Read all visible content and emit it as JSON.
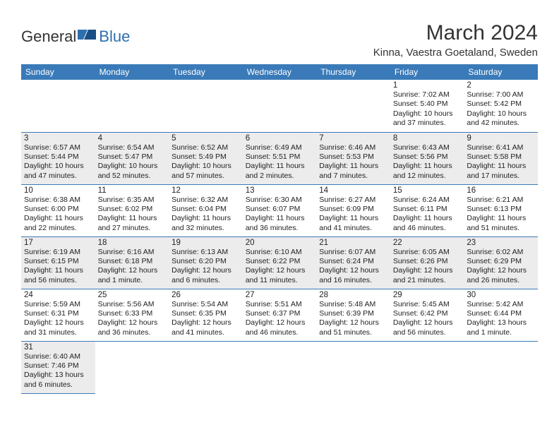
{
  "logo": {
    "text1": "General",
    "text2": "Blue",
    "accent": "#2f6fae"
  },
  "title": "March 2024",
  "location": "Kinna, Vaestra Goetaland, Sweden",
  "colors": {
    "header_bg": "#3a7ab8",
    "header_fg": "#ffffff",
    "row_alt_bg": "#ececec",
    "border": "#3a7ab8",
    "page_bg": "#ffffff",
    "text": "#222222"
  },
  "daynames": [
    "Sunday",
    "Monday",
    "Tuesday",
    "Wednesday",
    "Thursday",
    "Friday",
    "Saturday"
  ],
  "weeks": [
    [
      null,
      null,
      null,
      null,
      null,
      {
        "n": "1",
        "sr": "7:02 AM",
        "ss": "5:40 PM",
        "dl": "10 hours and 37 minutes."
      },
      {
        "n": "2",
        "sr": "7:00 AM",
        "ss": "5:42 PM",
        "dl": "10 hours and 42 minutes."
      }
    ],
    [
      {
        "n": "3",
        "sr": "6:57 AM",
        "ss": "5:44 PM",
        "dl": "10 hours and 47 minutes."
      },
      {
        "n": "4",
        "sr": "6:54 AM",
        "ss": "5:47 PM",
        "dl": "10 hours and 52 minutes."
      },
      {
        "n": "5",
        "sr": "6:52 AM",
        "ss": "5:49 PM",
        "dl": "10 hours and 57 minutes."
      },
      {
        "n": "6",
        "sr": "6:49 AM",
        "ss": "5:51 PM",
        "dl": "11 hours and 2 minutes."
      },
      {
        "n": "7",
        "sr": "6:46 AM",
        "ss": "5:53 PM",
        "dl": "11 hours and 7 minutes."
      },
      {
        "n": "8",
        "sr": "6:43 AM",
        "ss": "5:56 PM",
        "dl": "11 hours and 12 minutes."
      },
      {
        "n": "9",
        "sr": "6:41 AM",
        "ss": "5:58 PM",
        "dl": "11 hours and 17 minutes."
      }
    ],
    [
      {
        "n": "10",
        "sr": "6:38 AM",
        "ss": "6:00 PM",
        "dl": "11 hours and 22 minutes."
      },
      {
        "n": "11",
        "sr": "6:35 AM",
        "ss": "6:02 PM",
        "dl": "11 hours and 27 minutes."
      },
      {
        "n": "12",
        "sr": "6:32 AM",
        "ss": "6:04 PM",
        "dl": "11 hours and 32 minutes."
      },
      {
        "n": "13",
        "sr": "6:30 AM",
        "ss": "6:07 PM",
        "dl": "11 hours and 36 minutes."
      },
      {
        "n": "14",
        "sr": "6:27 AM",
        "ss": "6:09 PM",
        "dl": "11 hours and 41 minutes."
      },
      {
        "n": "15",
        "sr": "6:24 AM",
        "ss": "6:11 PM",
        "dl": "11 hours and 46 minutes."
      },
      {
        "n": "16",
        "sr": "6:21 AM",
        "ss": "6:13 PM",
        "dl": "11 hours and 51 minutes."
      }
    ],
    [
      {
        "n": "17",
        "sr": "6:19 AM",
        "ss": "6:15 PM",
        "dl": "11 hours and 56 minutes."
      },
      {
        "n": "18",
        "sr": "6:16 AM",
        "ss": "6:18 PM",
        "dl": "12 hours and 1 minute."
      },
      {
        "n": "19",
        "sr": "6:13 AM",
        "ss": "6:20 PM",
        "dl": "12 hours and 6 minutes."
      },
      {
        "n": "20",
        "sr": "6:10 AM",
        "ss": "6:22 PM",
        "dl": "12 hours and 11 minutes."
      },
      {
        "n": "21",
        "sr": "6:07 AM",
        "ss": "6:24 PM",
        "dl": "12 hours and 16 minutes."
      },
      {
        "n": "22",
        "sr": "6:05 AM",
        "ss": "6:26 PM",
        "dl": "12 hours and 21 minutes."
      },
      {
        "n": "23",
        "sr": "6:02 AM",
        "ss": "6:29 PM",
        "dl": "12 hours and 26 minutes."
      }
    ],
    [
      {
        "n": "24",
        "sr": "5:59 AM",
        "ss": "6:31 PM",
        "dl": "12 hours and 31 minutes."
      },
      {
        "n": "25",
        "sr": "5:56 AM",
        "ss": "6:33 PM",
        "dl": "12 hours and 36 minutes."
      },
      {
        "n": "26",
        "sr": "5:54 AM",
        "ss": "6:35 PM",
        "dl": "12 hours and 41 minutes."
      },
      {
        "n": "27",
        "sr": "5:51 AM",
        "ss": "6:37 PM",
        "dl": "12 hours and 46 minutes."
      },
      {
        "n": "28",
        "sr": "5:48 AM",
        "ss": "6:39 PM",
        "dl": "12 hours and 51 minutes."
      },
      {
        "n": "29",
        "sr": "5:45 AM",
        "ss": "6:42 PM",
        "dl": "12 hours and 56 minutes."
      },
      {
        "n": "30",
        "sr": "5:42 AM",
        "ss": "6:44 PM",
        "dl": "13 hours and 1 minute."
      }
    ],
    [
      {
        "n": "31",
        "sr": "6:40 AM",
        "ss": "7:46 PM",
        "dl": "13 hours and 6 minutes."
      },
      null,
      null,
      null,
      null,
      null,
      null
    ]
  ],
  "labels": {
    "sunrise": "Sunrise:",
    "sunset": "Sunset:",
    "daylight": "Daylight:"
  }
}
